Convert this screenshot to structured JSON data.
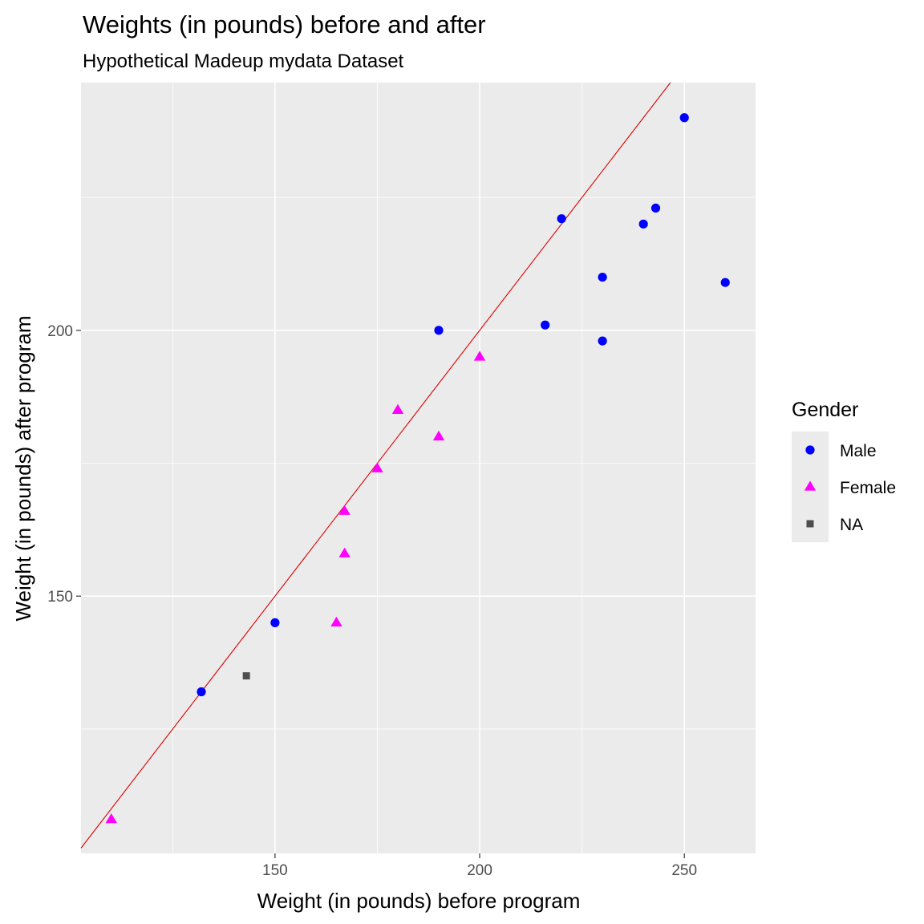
{
  "chart_data": {
    "type": "scatter",
    "title": "Weights (in pounds) before and after",
    "subtitle": "Hypothetical Madeup mydata Dataset",
    "xlabel": "Weight (in pounds) before program",
    "ylabel": "Weight (in pounds) after program",
    "xlim": [
      102.6,
      267.4
    ],
    "ylim": [
      101.6,
      246.6
    ],
    "xticks": [
      150,
      200,
      250
    ],
    "xtick_labels": [
      "150",
      "200",
      "250"
    ],
    "yticks": [
      150,
      200
    ],
    "ytick_labels": [
      "150",
      "200"
    ],
    "x_minor": [
      125,
      175,
      225
    ],
    "y_minor": [
      125,
      175,
      225
    ],
    "grid": true,
    "reference_line": {
      "slope": 1,
      "intercept": 0,
      "color": "#dd0000"
    },
    "legend": {
      "title": "Gender",
      "position": "right",
      "entries": [
        {
          "label": "Male",
          "shape": "circle",
          "color": "#0000ff"
        },
        {
          "label": "Female",
          "shape": "triangle",
          "color": "#ff00ff"
        },
        {
          "label": "NA",
          "shape": "square",
          "color": "#4d4d4d"
        }
      ]
    },
    "series": [
      {
        "name": "Male",
        "shape": "circle",
        "color": "#0000ff",
        "x": [
          250,
          220,
          243,
          240,
          230,
          260,
          190,
          216,
          230,
          150,
          132
        ],
        "y": [
          240,
          221,
          223,
          220,
          210,
          209,
          200,
          201,
          198,
          145,
          132
        ]
      },
      {
        "name": "Female",
        "shape": "triangle",
        "color": "#ff00ff",
        "x": [
          200,
          180,
          190,
          175,
          167,
          167,
          165,
          110
        ],
        "y": [
          195,
          185,
          180,
          174,
          166,
          158,
          145,
          108
        ]
      },
      {
        "name": "NA",
        "shape": "square",
        "color": "#4d4d4d",
        "x": [
          143
        ],
        "y": [
          135
        ]
      }
    ]
  }
}
